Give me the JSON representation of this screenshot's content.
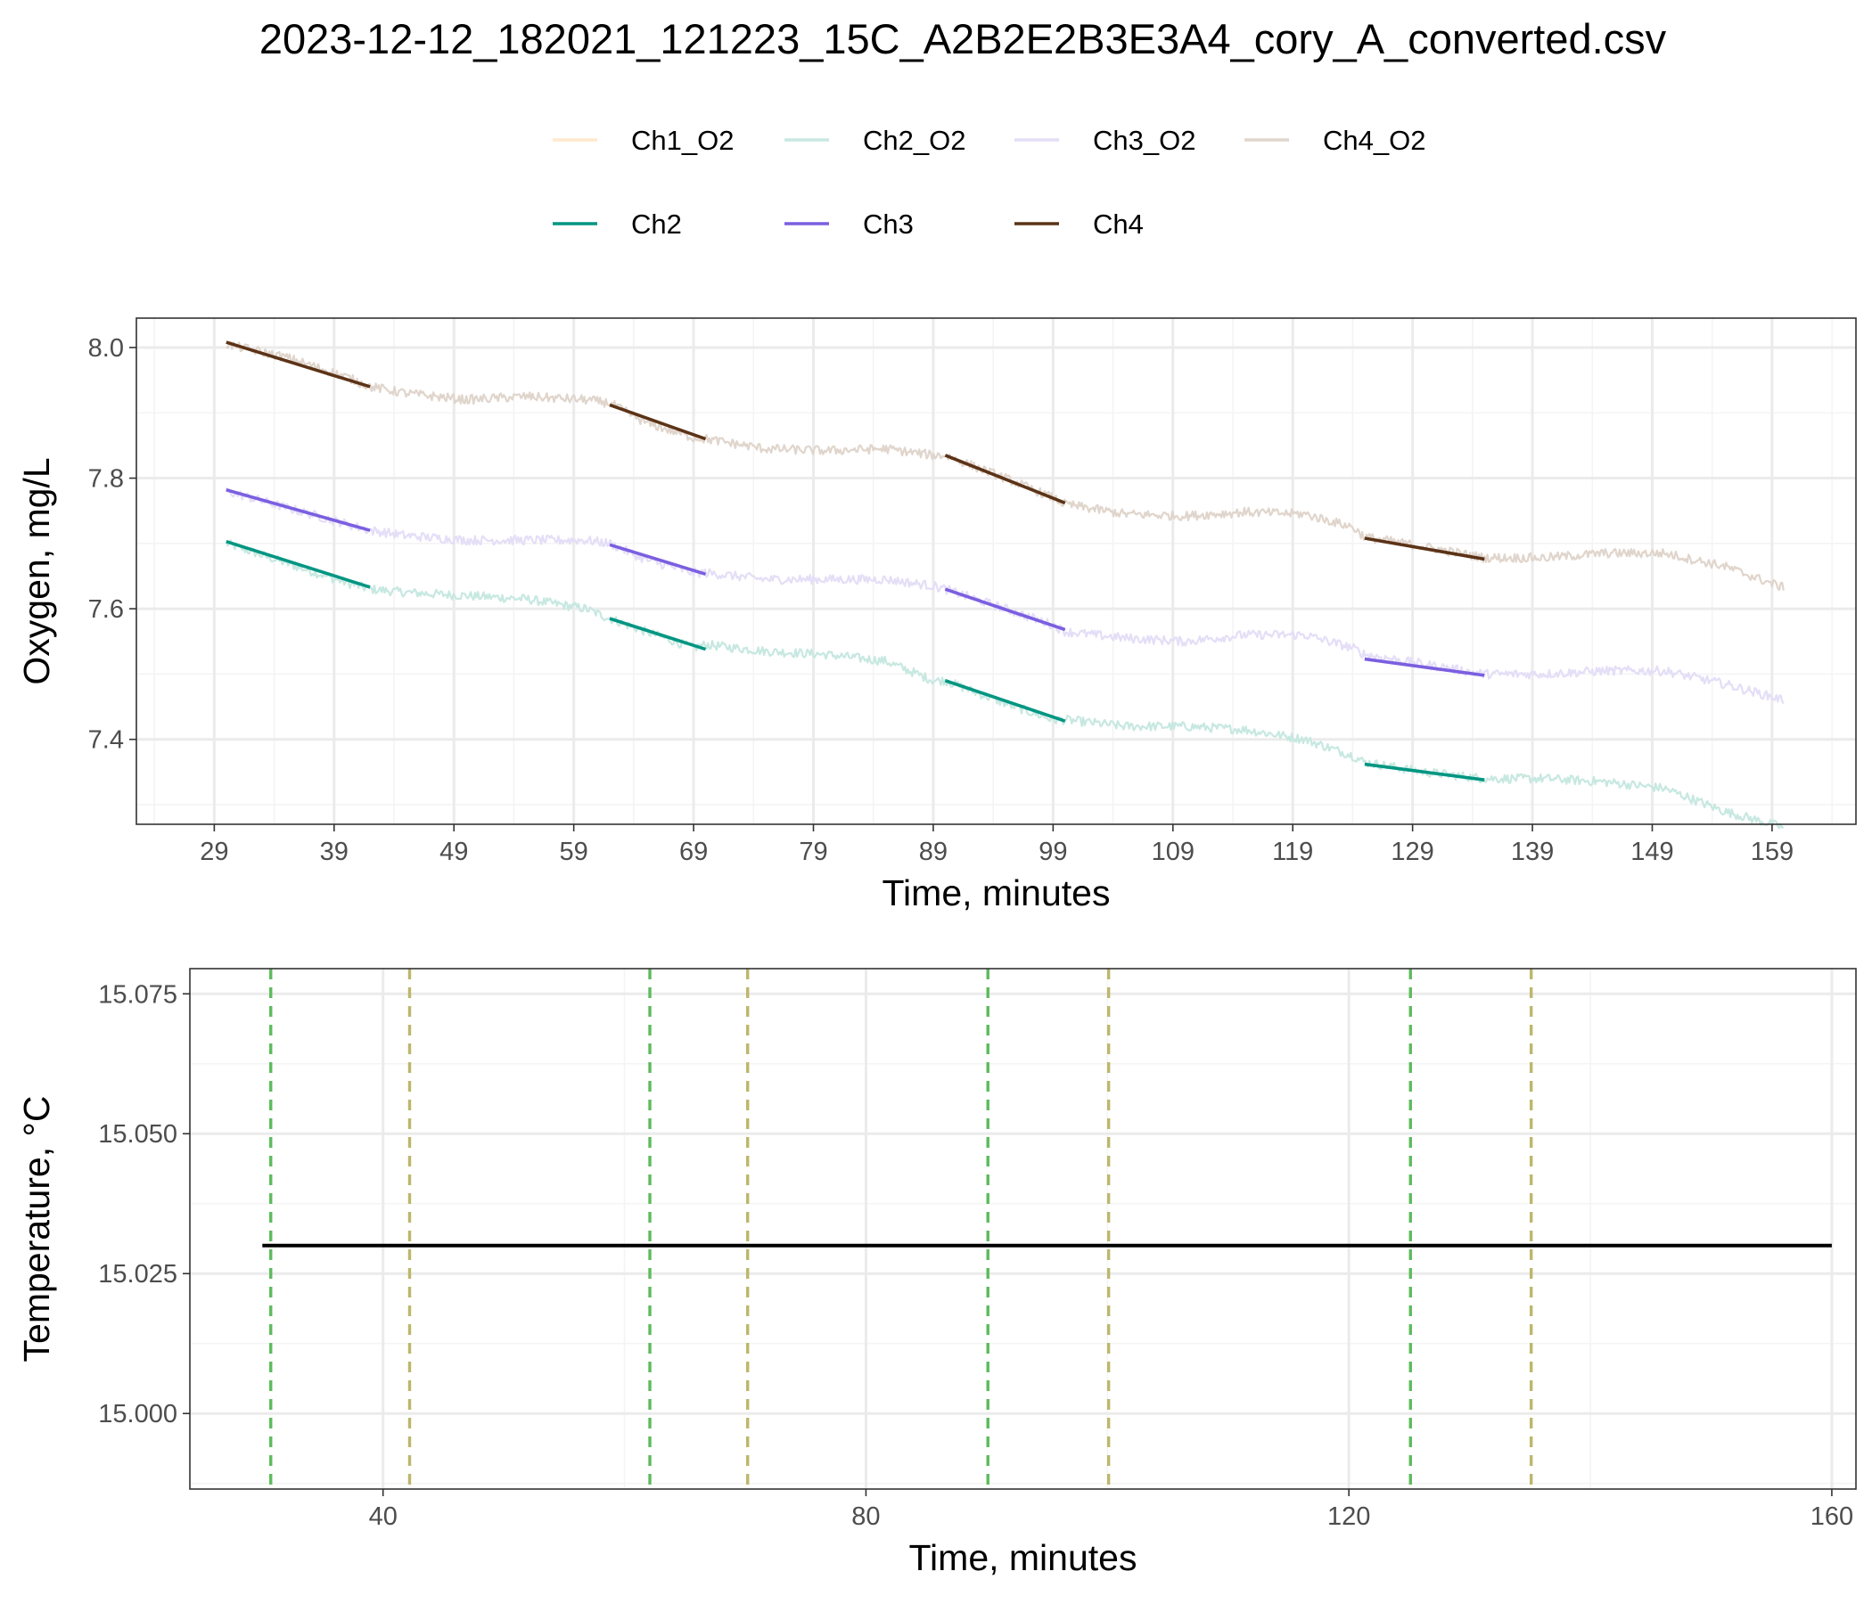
{
  "title": "2023-12-12_182021_121223_15C_A2B2E2B3E3A4_cory_A_converted.csv",
  "legend": {
    "raw": [
      {
        "name": "Ch1_O2",
        "color": "#FFE8CC"
      },
      {
        "name": "Ch2_O2",
        "color": "#C7E8E1"
      },
      {
        "name": "Ch3_O2",
        "color": "#E4DEF7"
      },
      {
        "name": "Ch4_O2",
        "color": "#E0D5CC"
      }
    ],
    "fits": [
      {
        "name": "Ch2",
        "color": "#009682"
      },
      {
        "name": "Ch3",
        "color": "#7B5FE0"
      },
      {
        "name": "Ch4",
        "color": "#5C3317"
      }
    ]
  },
  "chart_data": [
    {
      "type": "line",
      "xlabel": "Time, minutes",
      "ylabel": "Oxygen, mg/L",
      "xlim": [
        22.5,
        166
      ],
      "ylim": [
        7.27,
        8.045
      ],
      "x_ticks": [
        29,
        39,
        49,
        59,
        69,
        79,
        89,
        99,
        109,
        119,
        129,
        139,
        149,
        159
      ],
      "y_ticks": [
        7.4,
        7.6,
        7.8,
        8.0
      ],
      "y_tick_labels": [
        "7.4",
        "7.6",
        "7.8",
        "8.0"
      ],
      "grid": true,
      "legend_position": "top",
      "raw_series": [
        {
          "name": "Ch2_O2",
          "color": "#C7E8E1",
          "x": [
            30,
            35,
            40,
            42,
            45,
            50,
            55,
            60,
            62,
            65,
            69,
            70,
            75,
            80,
            85,
            89,
            90,
            95,
            99,
            100,
            105,
            110,
            115,
            120,
            124,
            125,
            130,
            135,
            140,
            145,
            150,
            155,
            160
          ],
          "y": [
            7.7,
            7.67,
            7.64,
            7.63,
            7.625,
            7.62,
            7.615,
            7.6,
            7.585,
            7.565,
            7.54,
            7.545,
            7.535,
            7.53,
            7.52,
            7.49,
            7.49,
            7.455,
            7.43,
            7.43,
            7.42,
            7.42,
            7.415,
            7.4,
            7.375,
            7.365,
            7.35,
            7.34,
            7.34,
            7.335,
            7.325,
            7.29,
            7.265
          ]
        },
        {
          "name": "Ch3_O2",
          "color": "#E4DEF7",
          "x": [
            30,
            35,
            40,
            42,
            45,
            50,
            55,
            60,
            62,
            65,
            69,
            70,
            75,
            80,
            85,
            89,
            90,
            95,
            99,
            100,
            105,
            110,
            115,
            120,
            124,
            125,
            130,
            135,
            140,
            145,
            150,
            155,
            160
          ],
          "y": [
            7.78,
            7.755,
            7.73,
            7.72,
            7.712,
            7.705,
            7.705,
            7.705,
            7.7,
            7.675,
            7.655,
            7.655,
            7.645,
            7.645,
            7.645,
            7.635,
            7.63,
            7.6,
            7.575,
            7.565,
            7.555,
            7.55,
            7.56,
            7.56,
            7.54,
            7.53,
            7.515,
            7.5,
            7.5,
            7.505,
            7.505,
            7.485,
            7.46
          ]
        },
        {
          "name": "Ch4_O2",
          "color": "#E0D5CC",
          "x": [
            30,
            35,
            40,
            42,
            45,
            50,
            55,
            60,
            62,
            65,
            69,
            70,
            75,
            80,
            85,
            89,
            90,
            95,
            99,
            100,
            105,
            110,
            115,
            120,
            124,
            125,
            130,
            135,
            140,
            145,
            150,
            155,
            160
          ],
          "y": [
            8.005,
            7.985,
            7.955,
            7.94,
            7.93,
            7.92,
            7.925,
            7.92,
            7.915,
            7.885,
            7.862,
            7.86,
            7.845,
            7.842,
            7.845,
            7.835,
            7.835,
            7.8,
            7.77,
            7.76,
            7.745,
            7.742,
            7.748,
            7.745,
            7.725,
            7.71,
            7.695,
            7.678,
            7.678,
            7.685,
            7.685,
            7.665,
            7.632
          ]
        }
      ],
      "fit_series": [
        {
          "name": "Ch2",
          "color": "#009682",
          "segments": [
            {
              "x": [
                30,
                42
              ],
              "y": [
                7.703,
                7.633
              ]
            },
            {
              "x": [
                62,
                70
              ],
              "y": [
                7.585,
                7.538
              ]
            },
            {
              "x": [
                90,
                100
              ],
              "y": [
                7.49,
                7.428
              ]
            },
            {
              "x": [
                125,
                135
              ],
              "y": [
                7.362,
                7.338
              ]
            }
          ]
        },
        {
          "name": "Ch3",
          "color": "#7B5FE0",
          "segments": [
            {
              "x": [
                30,
                42
              ],
              "y": [
                7.782,
                7.72
              ]
            },
            {
              "x": [
                62,
                70
              ],
              "y": [
                7.698,
                7.653
              ]
            },
            {
              "x": [
                90,
                100
              ],
              "y": [
                7.63,
                7.568
              ]
            },
            {
              "x": [
                125,
                135
              ],
              "y": [
                7.523,
                7.498
              ]
            }
          ]
        },
        {
          "name": "Ch4",
          "color": "#5C3317",
          "segments": [
            {
              "x": [
                30,
                42
              ],
              "y": [
                8.008,
                7.94
              ]
            },
            {
              "x": [
                62,
                70
              ],
              "y": [
                7.912,
                7.86
              ]
            },
            {
              "x": [
                90,
                100
              ],
              "y": [
                7.835,
                7.762
              ]
            },
            {
              "x": [
                125,
                135
              ],
              "y": [
                7.708,
                7.676
              ]
            }
          ]
        }
      ]
    },
    {
      "type": "line",
      "xlabel": "Time, minutes",
      "ylabel": "Temperature, °C",
      "xlim": [
        24,
        162
      ],
      "ylim": [
        14.9865,
        15.0795
      ],
      "x_ticks": [
        40,
        80,
        120,
        160
      ],
      "y_ticks": [
        15.0,
        15.025,
        15.05,
        15.075
      ],
      "y_tick_labels": [
        "15.000",
        "15.025",
        "15.050",
        "15.075"
      ],
      "grid": true,
      "series": [
        {
          "name": "",
          "color": "#000000",
          "x": [
            30,
            160
          ],
          "y": [
            15.03,
            15.03
          ]
        }
      ],
      "vlines": [
        {
          "x": 30.7,
          "color": "#5DBB5D"
        },
        {
          "x": 42.2,
          "color": "#BDB76B"
        },
        {
          "x": 62.1,
          "color": "#5DBB5D"
        },
        {
          "x": 70.2,
          "color": "#BDB76B"
        },
        {
          "x": 90.1,
          "color": "#5DBB5D"
        },
        {
          "x": 100.1,
          "color": "#BDB76B"
        },
        {
          "x": 125.1,
          "color": "#5DBB5D"
        },
        {
          "x": 135.1,
          "color": "#BDB76B"
        }
      ]
    }
  ]
}
